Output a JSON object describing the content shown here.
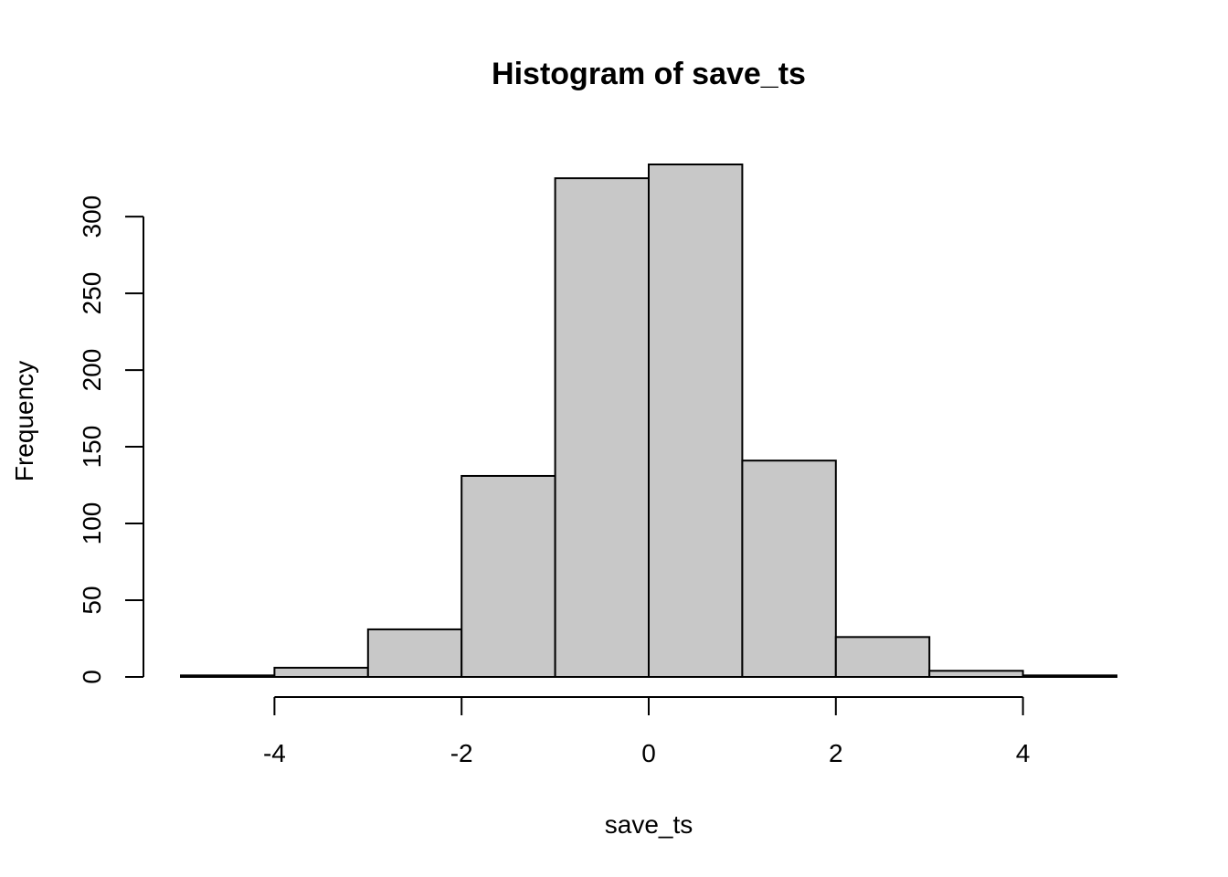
{
  "chart_data": {
    "type": "bar",
    "subtype": "histogram",
    "title": "Histogram of save_ts",
    "xlabel": "save_ts",
    "ylabel": "Frequency",
    "bin_edges": [
      -5,
      -4,
      -3,
      -2,
      -1,
      0,
      1,
      2,
      3,
      4,
      5
    ],
    "values": [
      1,
      6,
      31,
      131,
      325,
      334,
      141,
      26,
      4,
      1
    ],
    "xlim": [
      -5,
      5
    ],
    "ylim": [
      0,
      334
    ],
    "x_ticks": [
      -4,
      -2,
      0,
      2,
      4
    ],
    "x_tick_labels": [
      "-4",
      "-2",
      "0",
      "2",
      "4"
    ],
    "y_ticks": [
      0,
      50,
      100,
      150,
      200,
      250,
      300
    ],
    "y_tick_labels": [
      "0",
      "50",
      "100",
      "150",
      "200",
      "250",
      "300"
    ],
    "bar_fill": "#c8c8c8",
    "bar_stroke": "#000000",
    "grid": false,
    "legend": "none"
  }
}
